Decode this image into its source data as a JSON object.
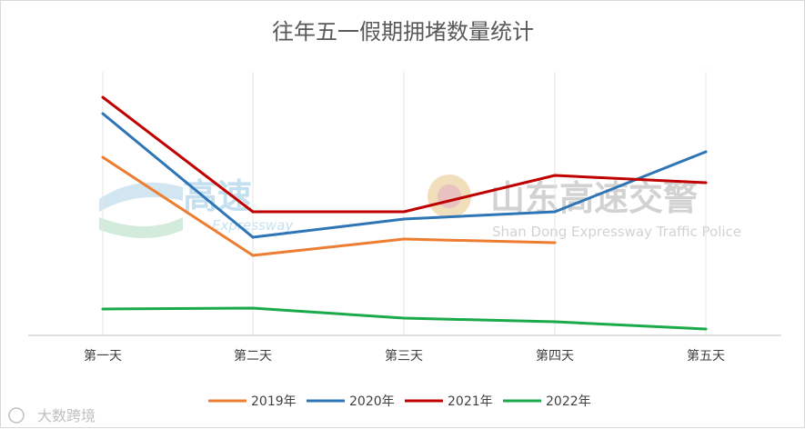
{
  "chart_data": {
    "type": "line",
    "title": "往年五一假期拥堵数量统计",
    "categories": [
      "第一天",
      "第二天",
      "第三天",
      "第四天",
      "第五天"
    ],
    "series": [
      {
        "name": "2019年",
        "color": "#ED7D31",
        "values": [
          196,
          88,
          106,
          102,
          null
        ]
      },
      {
        "name": "2020年",
        "color": "#2E75B6",
        "values": [
          244,
          108,
          128,
          136,
          202
        ]
      },
      {
        "name": "2021年",
        "color": "#C00000",
        "values": [
          262,
          136,
          136,
          176,
          168
        ]
      },
      {
        "name": "2022年",
        "color": "#1BAA4A",
        "values": [
          29,
          30,
          19,
          15,
          7
        ]
      }
    ],
    "ylim": [
      0,
      290
    ],
    "grid": "vertical",
    "legend_position": "bottom"
  },
  "watermarks": {
    "expressway_logo_text": "高速",
    "expressway_logo_sub": "Expressway",
    "police_text": "山东高速交警",
    "police_sub": "Shan Dong Expressway Traffic Police",
    "corner_text": "大数跨境"
  }
}
